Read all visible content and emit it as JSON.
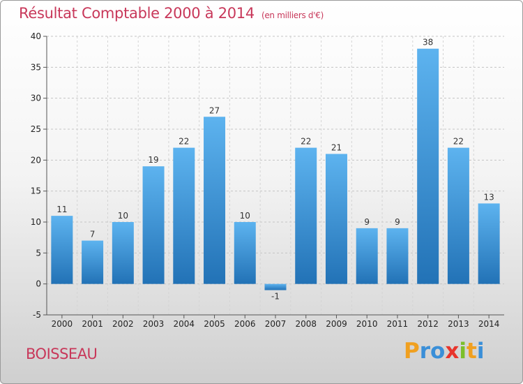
{
  "header": {
    "title": "Résultat Comptable 2000 à 2014",
    "subtitle": "(en milliers d'€)"
  },
  "footer": {
    "commune": "BOISSEAU",
    "logo_letters": [
      "P",
      "r",
      "o",
      "x",
      "i",
      "t",
      "i"
    ],
    "logo_colors": [
      "#f0a020",
      "#3a8fd8",
      "#3a8fd8",
      "#e8342c",
      "#7cbf2a",
      "#f0a020",
      "#3a8fd8"
    ]
  },
  "chart_data": {
    "type": "bar",
    "title": "Résultat Comptable 2000 à 2014",
    "subtitle": "(en milliers d'€)",
    "categories": [
      "2000",
      "2001",
      "2002",
      "2003",
      "2004",
      "2005",
      "2006",
      "2007",
      "2008",
      "2009",
      "2010",
      "2011",
      "2012",
      "2013",
      "2014"
    ],
    "values": [
      11,
      7,
      10,
      19,
      22,
      27,
      10,
      -1,
      22,
      21,
      9,
      9,
      38,
      22,
      13
    ],
    "ylim": [
      -5,
      40
    ],
    "yticks": [
      -5,
      0,
      5,
      10,
      15,
      20,
      25,
      30,
      35,
      40
    ],
    "grid": true,
    "data_labels": true,
    "bar_color": "#3c96dc"
  }
}
